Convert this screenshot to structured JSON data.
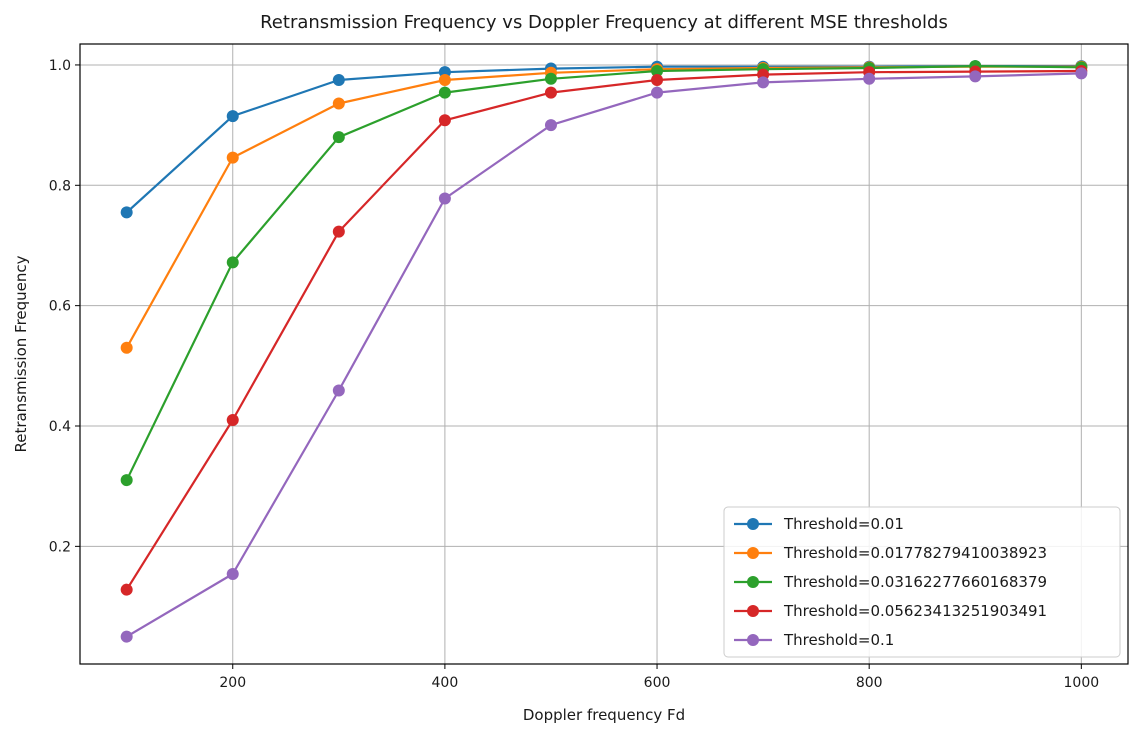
{
  "chart_data": {
    "type": "line",
    "title": "Retransmission Frequency vs Doppler Frequency at different MSE thresholds",
    "xlabel": "Doppler frequency Fd",
    "ylabel": "Retransmission Frequency",
    "x": [
      100,
      200,
      300,
      400,
      500,
      600,
      700,
      800,
      900,
      1000
    ],
    "xlim": [
      56,
      1044
    ],
    "ylim": [
      0.0045,
      1.0348
    ],
    "xticks": [
      200,
      400,
      600,
      800,
      1000
    ],
    "xtick_labels": [
      "200",
      "400",
      "600",
      "800",
      "1000"
    ],
    "yticks": [
      0.2,
      0.4,
      0.6,
      0.8,
      1.0
    ],
    "ytick_labels": [
      "0.2",
      "0.4",
      "0.6",
      "0.8",
      "1.0"
    ],
    "grid": true,
    "legend_position": "lower-right",
    "series": [
      {
        "name": "Threshold=0.01",
        "color": "#1f77b4",
        "values": [
          0.755,
          0.915,
          0.975,
          0.988,
          0.994,
          0.997,
          0.997,
          0.997,
          0.998,
          0.998
        ]
      },
      {
        "name": "Threshold=0.01778279410038923",
        "color": "#ff7f0e",
        "values": [
          0.53,
          0.846,
          0.936,
          0.975,
          0.987,
          0.993,
          0.995,
          0.996,
          0.997,
          0.997
        ]
      },
      {
        "name": "Threshold=0.03162277660168379",
        "color": "#2ca02c",
        "values": [
          0.31,
          0.672,
          0.88,
          0.954,
          0.977,
          0.99,
          0.993,
          0.995,
          0.998,
          0.996
        ]
      },
      {
        "name": "Threshold=0.05623413251903491",
        "color": "#d62728",
        "values": [
          0.128,
          0.41,
          0.723,
          0.908,
          0.954,
          0.975,
          0.984,
          0.988,
          0.989,
          0.99
        ]
      },
      {
        "name": "Threshold=0.1",
        "color": "#9467bd",
        "values": [
          0.05,
          0.154,
          0.459,
          0.778,
          0.9,
          0.954,
          0.971,
          0.977,
          0.981,
          0.986
        ]
      }
    ]
  }
}
